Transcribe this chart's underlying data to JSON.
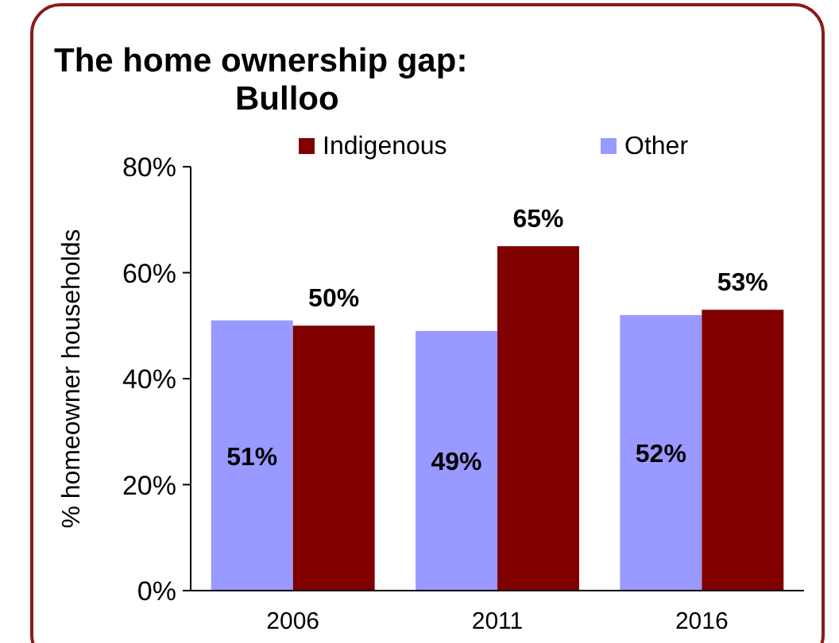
{
  "chart_data": {
    "type": "bar",
    "title": "The home ownership gap:\nBulloo",
    "ylabel": "% homeowner households",
    "categories": [
      "2006",
      "2011",
      "2016"
    ],
    "series": [
      {
        "name": "Other",
        "color": "#9999ff",
        "values": [
          51,
          49,
          52
        ],
        "value_labels": [
          "51%",
          "49%",
          "52%"
        ]
      },
      {
        "name": "Indigenous",
        "color": "#800000",
        "values": [
          50,
          65,
          53
        ],
        "value_labels": [
          "50%",
          "65%",
          "53%"
        ]
      }
    ],
    "ylim": [
      0,
      80
    ],
    "yticks": [
      {
        "value": 0,
        "label": "0%"
      },
      {
        "value": 20,
        "label": "20%"
      },
      {
        "value": 40,
        "label": "40%"
      },
      {
        "value": 60,
        "label": "60%"
      },
      {
        "value": 80,
        "label": "80%"
      }
    ],
    "legend": "top",
    "grid": false
  }
}
